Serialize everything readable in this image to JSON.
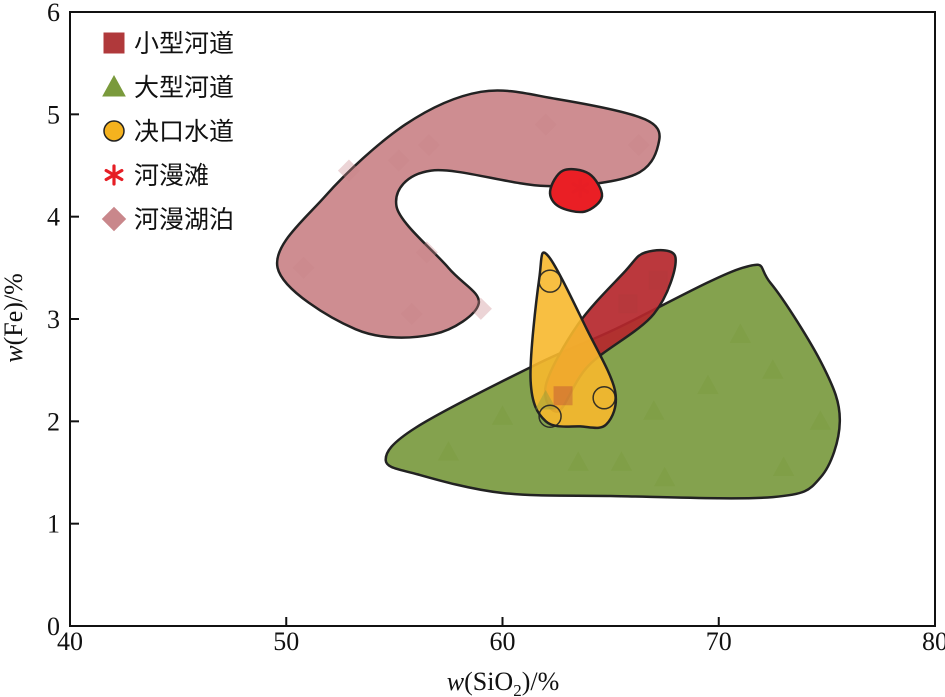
{
  "chart_data": {
    "type": "scatter",
    "xlabel": {
      "prefix": "w",
      "text": "(SiO",
      "sub": "2",
      "suffix": ")/%"
    },
    "ylabel": {
      "prefix": "w",
      "text": "(Fe)/%"
    },
    "xlim": [
      40,
      80
    ],
    "ylim": [
      0,
      6
    ],
    "xticks": [
      "40",
      "50",
      "60",
      "70",
      "80"
    ],
    "yticks": [
      "0",
      "1",
      "2",
      "3",
      "4",
      "5",
      "6"
    ],
    "grid": false,
    "legend_position": "top-left",
    "series": [
      {
        "name": "小型河道",
        "marker": "square",
        "color": "#b0393b",
        "fill": "#b5272c",
        "region": [
          [
            66.6,
            3.65
          ],
          [
            68.0,
            3.6
          ],
          [
            67.0,
            3.05
          ],
          [
            64.0,
            2.55
          ],
          [
            62.6,
            2.1
          ],
          [
            62.0,
            2.35
          ],
          [
            63.5,
            2.95
          ],
          [
            65.6,
            3.45
          ]
        ],
        "points": [
          [
            62.8,
            2.25
          ],
          [
            65.8,
            3.15
          ],
          [
            67.2,
            3.38
          ]
        ]
      },
      {
        "name": "大型河道",
        "marker": "triangle",
        "color": "#7a9a3c",
        "fill": "#7d9d45",
        "region": [
          [
            71.1,
            3.5
          ],
          [
            72.4,
            3.35
          ],
          [
            74.8,
            2.55
          ],
          [
            75.6,
            2.0
          ],
          [
            74.7,
            1.45
          ],
          [
            72.5,
            1.26
          ],
          [
            65,
            1.27
          ],
          [
            60,
            1.3
          ],
          [
            56.1,
            1.48
          ],
          [
            54.6,
            1.62
          ],
          [
            56,
            1.94
          ],
          [
            61.5,
            2.55
          ],
          [
            65.2,
            2.9
          ]
        ],
        "points": [
          [
            60,
            2.05
          ],
          [
            62,
            2.2
          ],
          [
            63.5,
            1.6
          ],
          [
            65.5,
            1.6
          ],
          [
            67,
            2.1
          ],
          [
            69.5,
            2.35
          ],
          [
            71,
            2.85
          ],
          [
            72.5,
            2.5
          ],
          [
            73,
            1.55
          ],
          [
            74.7,
            2.0
          ],
          [
            67.5,
            1.45
          ],
          [
            57.5,
            1.7
          ]
        ]
      },
      {
        "name": "决口水道",
        "marker": "circle",
        "color": "#f5b21e",
        "fill": "#f7b82d",
        "region": [
          [
            62.1,
            3.62
          ],
          [
            63.9,
            2.9
          ],
          [
            65.2,
            2.3
          ],
          [
            64.8,
            1.97
          ],
          [
            63.6,
            1.95
          ],
          [
            62,
            2.0
          ],
          [
            61.3,
            2.4
          ],
          [
            61.7,
            3.4
          ]
        ],
        "points": [
          [
            62.2,
            3.37
          ],
          [
            62.2,
            2.05
          ],
          [
            64.7,
            2.23
          ]
        ]
      },
      {
        "name": "河漫滩",
        "marker": "asterisk",
        "color": "#e61e25",
        "fill": "#ea1f25",
        "region": [
          [
            62.8,
            4.45
          ],
          [
            64.0,
            4.42
          ],
          [
            64.6,
            4.2
          ],
          [
            63.8,
            4.05
          ],
          [
            62.6,
            4.1
          ],
          [
            62.2,
            4.25
          ]
        ],
        "points": [
          [
            63.6,
            4.28
          ]
        ]
      },
      {
        "name": "河漫湖泊",
        "marker": "diamond",
        "color": "#c9878b",
        "fill": "#cb878b",
        "region": [
          [
            59,
            5.22
          ],
          [
            62.5,
            5.15
          ],
          [
            66.6,
            4.95
          ],
          [
            67.2,
            4.7
          ],
          [
            66,
            4.4
          ],
          [
            62,
            4.3
          ],
          [
            56.7,
            4.45
          ],
          [
            55.1,
            4.1
          ],
          [
            57.5,
            3.5
          ],
          [
            58.9,
            3.15
          ],
          [
            56.8,
            2.85
          ],
          [
            53.2,
            2.9
          ],
          [
            49.6,
            3.5
          ],
          [
            51.8,
            4.2
          ],
          [
            55.5,
            4.9
          ]
        ],
        "points": [
          [
            50.8,
            3.5
          ],
          [
            52.9,
            4.45
          ],
          [
            55.2,
            4.55
          ],
          [
            55.8,
            3.05
          ],
          [
            56.5,
            3.65
          ],
          [
            56.6,
            4.7
          ],
          [
            59,
            3.1
          ],
          [
            62,
            4.9
          ],
          [
            66.3,
            4.7
          ]
        ]
      }
    ]
  }
}
